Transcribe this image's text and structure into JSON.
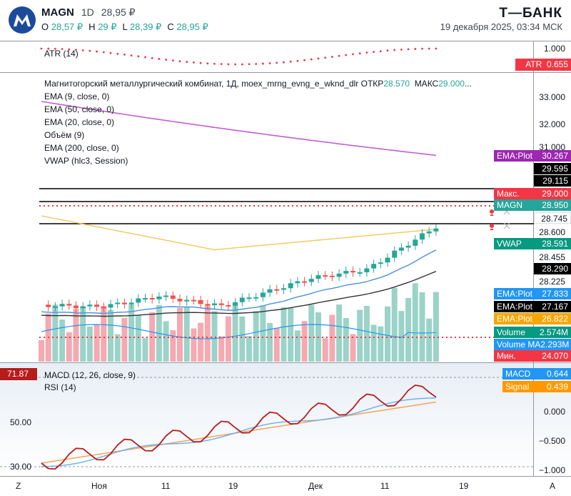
{
  "header": {
    "symbol": "MAGN",
    "interval": "1D",
    "last": "28,95 ₽",
    "ohlc": [
      {
        "k": "O",
        "v": "28,57 ₽"
      },
      {
        "k": "H",
        "v": "29 ₽"
      },
      {
        "k": "L",
        "v": "28,39 ₽"
      },
      {
        "k": "C",
        "v": "28,95 ₽"
      }
    ],
    "brand": "Т—БАНК",
    "datetime": "19 декабря 2025, 03:34 МСК"
  },
  "atr_pane": {
    "legend": "ATR (14)",
    "axis_label": "1.000",
    "tag_label": "ATR",
    "tag_value": "0.655"
  },
  "main_pane": {
    "legend": [
      "Магнитогорский металлургический комбинат, 1Д, moex_mrng_evng_e_wknd_dlr",
      "EMA (9, close, 0)",
      "EMA (50, close, 0)",
      "EMA (20, close, 0)",
      "Объём (9)",
      "EMA (200, close, 0)",
      "VWAP (hlc3, Session)"
    ],
    "legend_open_label": "ОТКР",
    "legend_open": "28.570",
    "legend_high_label": "МАКС",
    "legend_high": "29.000",
    "axis_labels": [
      "33.000",
      "32.000",
      "31.000",
      "28.600",
      "28.455",
      "28.225"
    ],
    "axis_tags": [
      {
        "label": "EMA:Plot",
        "value": "30.267",
        "color": "#9c27b0"
      },
      {
        "value": "29.595",
        "color": "#000000"
      },
      {
        "value": "29.115",
        "color": "#000000"
      },
      {
        "label": "Макс.",
        "value": "29.000",
        "color": "#f23645"
      },
      {
        "label": "MAGN",
        "value": "28.950",
        "color": "#26a69a"
      },
      {
        "value": "28.745",
        "color": "#ffffff",
        "text": "#131722"
      },
      {
        "label": "VWAP",
        "value": "28.591",
        "color": "#089981"
      },
      {
        "value": "28.290",
        "color": "#000000"
      },
      {
        "label": "EMA:Plot",
        "value": "27.833",
        "color": "#2196f3"
      },
      {
        "label": "EMA:Plot",
        "value": "27.167",
        "color": "#000000"
      },
      {
        "label": "EMA:Plot",
        "value": "26.822",
        "color": "#f7a600"
      },
      {
        "label": "Volume",
        "value": "2.574M",
        "color": "#089981"
      },
      {
        "label": "Volume MA",
        "value": "2.293M",
        "color": "#2196f3"
      },
      {
        "label": "Мин.",
        "value": "24.070",
        "color": "#f23645"
      }
    ]
  },
  "macd_pane": {
    "legend_macd": "MACD (12, 26, close, 9)",
    "legend_rsi": "RSI (14)",
    "rsi_tag": "71.87",
    "rsi_levels": [
      "50.00",
      "30.00"
    ],
    "axis_labels": [
      "0.000",
      "−0.500",
      "−1.000"
    ],
    "tags": [
      {
        "label": "MACD",
        "value": "0.644",
        "color": "#2196f3"
      },
      {
        "label": "Signal",
        "value": "0.439",
        "color": "#ff9800"
      }
    ]
  },
  "x_axis": {
    "labels": [
      "Ноя",
      "11",
      "19",
      "Дек",
      "11",
      "19"
    ],
    "left_btn": "Z",
    "right_btn": "A"
  },
  "chart_data": {
    "type": "candlestick",
    "symbol": "MAGN",
    "interval": "1D",
    "series": [
      {
        "name": "EMA (9, close, 0)",
        "last": 27.833
      },
      {
        "name": "EMA (50, close, 0)",
        "last": 27.167
      },
      {
        "name": "EMA (20, close, 0)",
        "last": 26.822
      },
      {
        "name": "EMA (200, close, 0)",
        "last": 30.267
      },
      {
        "name": "VWAP (hlc3, Session)",
        "last": 28.591
      },
      {
        "name": "Volume",
        "last": "2.574M"
      },
      {
        "name": "Volume MA",
        "last": "2.293M"
      },
      {
        "name": "MACD",
        "last": 0.644
      },
      {
        "name": "Signal",
        "last": 0.439
      },
      {
        "name": "RSI (14)",
        "last": 71.87
      },
      {
        "name": "ATR (14)",
        "last": 0.655
      }
    ],
    "levels": [
      29.595,
      29.115,
      29.0,
      28.745
    ]
  }
}
